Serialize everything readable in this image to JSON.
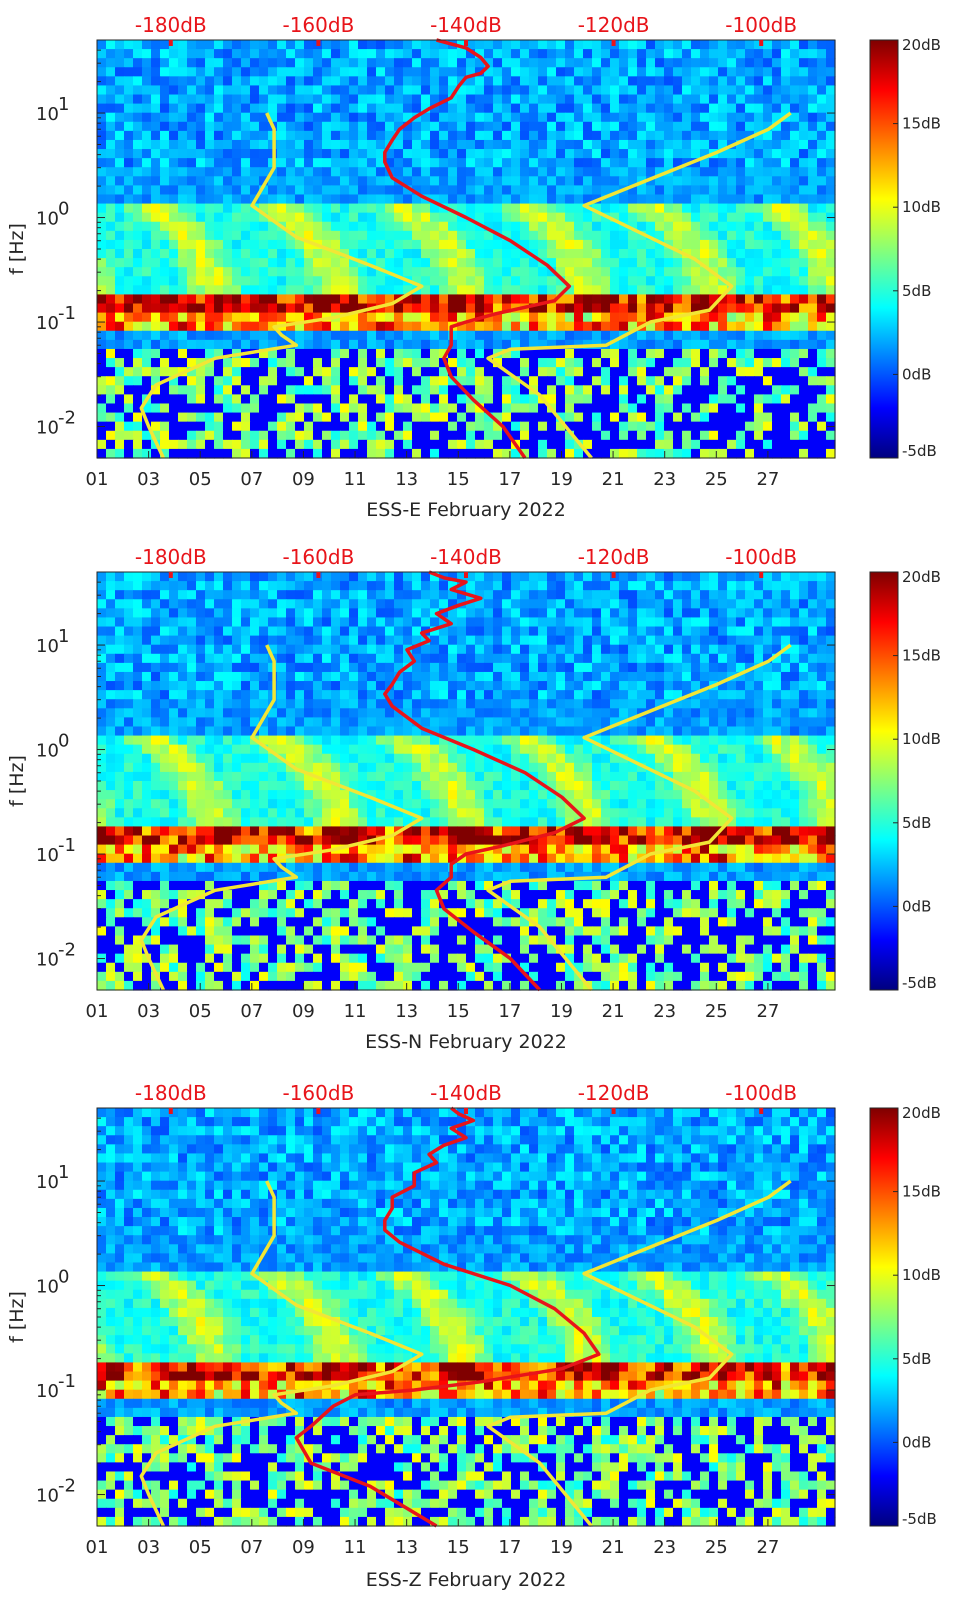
{
  "chart_data": [
    {
      "type": "heatmap",
      "title": "",
      "xlabel": "ESS-E February 2022",
      "ylabel": "f [Hz]",
      "x_tick_labels": [
        "01",
        "03",
        "05",
        "07",
        "09",
        "11",
        "13",
        "15",
        "17",
        "19",
        "21",
        "23",
        "25",
        "27"
      ],
      "x_range_days": [
        1,
        29.6
      ],
      "y_scale": "log",
      "y_range_hz": [
        0.005,
        50
      ],
      "y_tick_labels": [
        {
          "value": 10,
          "base": "10",
          "exp": "1"
        },
        {
          "value": 1,
          "base": "10",
          "exp": "0"
        },
        {
          "value": 0.1,
          "base": "10",
          "exp": "-1"
        },
        {
          "value": 0.01,
          "base": "10",
          "exp": "-2"
        }
      ],
      "top_axis_labels": [
        "-180dB",
        "-160dB",
        "-140dB",
        "-120dB",
        "-100dB"
      ],
      "top_axis_range_db": [
        -190,
        -90
      ],
      "colorbar": {
        "range_db": [
          -5,
          20
        ],
        "tick_labels": [
          "20dB",
          "15dB",
          "10dB",
          "5dB",
          "0dB",
          "-5dB"
        ],
        "colormap": "jet"
      },
      "series": [
        {
          "color": "#e8141a",
          "unit": "dB",
          "points": [
            [
              -144,
              50
            ],
            [
              -140,
              42
            ],
            [
              -138,
              34
            ],
            [
              -137,
              28
            ],
            [
              -138,
              24
            ],
            [
              -140,
              22
            ],
            [
              -141,
              18
            ],
            [
              -142,
              14
            ],
            [
              -145,
              11
            ],
            [
              -147,
              9
            ],
            [
              -149,
              7
            ],
            [
              -150,
              5.5
            ],
            [
              -151,
              4.2
            ],
            [
              -151,
              3.4
            ],
            [
              -150,
              2.4
            ],
            [
              -146,
              1.6
            ],
            [
              -140,
              1.0
            ],
            [
              -134,
              0.6
            ],
            [
              -129,
              0.35
            ],
            [
              -126,
              0.22
            ],
            [
              -128,
              0.16
            ],
            [
              -136,
              0.12
            ],
            [
              -140,
              0.1
            ],
            [
              -142,
              0.09
            ],
            [
              -142,
              0.06
            ],
            [
              -143,
              0.045
            ],
            [
              -142,
              0.03
            ],
            [
              -139,
              0.018
            ],
            [
              -135,
              0.01
            ],
            [
              -132,
              0.005
            ]
          ]
        },
        {
          "color": "#f2e635",
          "unit": "dB",
          "points": [
            [
              -181,
              0.005
            ],
            [
              -183,
              0.01
            ],
            [
              -184,
              0.015
            ],
            [
              -182,
              0.025
            ],
            [
              -174,
              0.045
            ],
            [
              -163,
              0.06
            ],
            [
              -165,
              0.075
            ],
            [
              -166,
              0.09
            ],
            [
              -158,
              0.11
            ],
            [
              -150,
              0.15
            ],
            [
              -146,
              0.22
            ],
            [
              -153,
              0.35
            ],
            [
              -163,
              0.65
            ],
            [
              -169,
              1.3
            ],
            [
              -166,
              3.0
            ],
            [
              -166,
              7.0
            ],
            [
              -167,
              10
            ]
          ]
        },
        {
          "color": "#f2e635",
          "unit": "dB",
          "points": [
            [
              -123,
              0.005
            ],
            [
              -130,
              0.02
            ],
            [
              -137,
              0.045
            ],
            [
              -134,
              0.055
            ],
            [
              -121,
              0.06
            ],
            [
              -115,
              0.1
            ],
            [
              -107,
              0.13
            ],
            [
              -104,
              0.22
            ],
            [
              -109,
              0.4
            ],
            [
              -124,
              1.3
            ],
            [
              -114,
              2.5
            ],
            [
              -106,
              4.2
            ],
            [
              -99,
              7.0
            ],
            [
              -96,
              10
            ]
          ]
        }
      ]
    },
    {
      "type": "heatmap",
      "title": "",
      "xlabel": "ESS-N February 2022",
      "ylabel": "f [Hz]",
      "x_tick_labels": [
        "01",
        "03",
        "05",
        "07",
        "09",
        "11",
        "13",
        "15",
        "17",
        "19",
        "21",
        "23",
        "25",
        "27"
      ],
      "x_range_days": [
        1,
        29.6
      ],
      "y_scale": "log",
      "y_range_hz": [
        0.005,
        50
      ],
      "y_tick_labels": [
        {
          "value": 10,
          "base": "10",
          "exp": "1"
        },
        {
          "value": 1,
          "base": "10",
          "exp": "0"
        },
        {
          "value": 0.1,
          "base": "10",
          "exp": "-1"
        },
        {
          "value": 0.01,
          "base": "10",
          "exp": "-2"
        }
      ],
      "top_axis_labels": [
        "-180dB",
        "-160dB",
        "-140dB",
        "-120dB",
        "-100dB"
      ],
      "top_axis_range_db": [
        -190,
        -90
      ],
      "colorbar": {
        "range_db": [
          -5,
          20
        ],
        "tick_labels": [
          "20dB",
          "15dB",
          "10dB",
          "5dB",
          "0dB",
          "-5dB"
        ],
        "colormap": "jet"
      },
      "series": [
        {
          "color": "#e8141a",
          "unit": "dB",
          "points": [
            [
              -145,
              50
            ],
            [
              -143,
              44
            ],
            [
              -140,
              40
            ],
            [
              -142,
              34
            ],
            [
              -138,
              28
            ],
            [
              -141,
              24
            ],
            [
              -144,
              20
            ],
            [
              -142,
              16
            ],
            [
              -146,
              13
            ],
            [
              -145,
              11
            ],
            [
              -148,
              9
            ],
            [
              -147,
              7
            ],
            [
              -149,
              5.5
            ],
            [
              -150,
              4.2
            ],
            [
              -151,
              3.4
            ],
            [
              -150,
              2.6
            ],
            [
              -146,
              1.6
            ],
            [
              -139,
              1.0
            ],
            [
              -132,
              0.6
            ],
            [
              -127,
              0.35
            ],
            [
              -124,
              0.22
            ],
            [
              -128,
              0.16
            ],
            [
              -135,
              0.12
            ],
            [
              -140,
              0.1
            ],
            [
              -142,
              0.08
            ],
            [
              -142,
              0.06
            ],
            [
              -144,
              0.045
            ],
            [
              -143,
              0.03
            ],
            [
              -139,
              0.018
            ],
            [
              -134,
              0.01
            ],
            [
              -130,
              0.005
            ]
          ]
        },
        {
          "color": "#f2e635",
          "unit": "dB",
          "points": [
            [
              -181,
              0.005
            ],
            [
              -183,
              0.01
            ],
            [
              -184,
              0.015
            ],
            [
              -182,
              0.025
            ],
            [
              -174,
              0.045
            ],
            [
              -163,
              0.06
            ],
            [
              -165,
              0.075
            ],
            [
              -166,
              0.09
            ],
            [
              -158,
              0.11
            ],
            [
              -150,
              0.15
            ],
            [
              -146,
              0.22
            ],
            [
              -153,
              0.35
            ],
            [
              -163,
              0.65
            ],
            [
              -169,
              1.3
            ],
            [
              -166,
              3.0
            ],
            [
              -166,
              7.0
            ],
            [
              -167,
              10
            ]
          ]
        },
        {
          "color": "#f2e635",
          "unit": "dB",
          "points": [
            [
              -123,
              0.005
            ],
            [
              -130,
              0.02
            ],
            [
              -137,
              0.045
            ],
            [
              -134,
              0.055
            ],
            [
              -121,
              0.06
            ],
            [
              -115,
              0.1
            ],
            [
              -107,
              0.13
            ],
            [
              -104,
              0.22
            ],
            [
              -109,
              0.4
            ],
            [
              -124,
              1.3
            ],
            [
              -114,
              2.5
            ],
            [
              -106,
              4.2
            ],
            [
              -99,
              7.0
            ],
            [
              -96,
              10
            ]
          ]
        }
      ]
    },
    {
      "type": "heatmap",
      "title": "",
      "xlabel": "ESS-Z February 2022",
      "ylabel": "f [Hz]",
      "x_tick_labels": [
        "01",
        "03",
        "05",
        "07",
        "09",
        "11",
        "13",
        "15",
        "17",
        "19",
        "21",
        "23",
        "25",
        "27"
      ],
      "x_range_days": [
        1,
        29.6
      ],
      "y_scale": "log",
      "y_range_hz": [
        0.005,
        50
      ],
      "y_tick_labels": [
        {
          "value": 10,
          "base": "10",
          "exp": "1"
        },
        {
          "value": 1,
          "base": "10",
          "exp": "0"
        },
        {
          "value": 0.1,
          "base": "10",
          "exp": "-1"
        },
        {
          "value": 0.01,
          "base": "10",
          "exp": "-2"
        }
      ],
      "top_axis_labels": [
        "-180dB",
        "-160dB",
        "-140dB",
        "-120dB",
        "-100dB"
      ],
      "top_axis_range_db": [
        -190,
        -90
      ],
      "colorbar": {
        "range_db": [
          -5,
          20
        ],
        "tick_labels": [
          "20dB",
          "15dB",
          "10dB",
          "5dB",
          "0dB",
          "-5dB"
        ],
        "colormap": "jet"
      },
      "series": [
        {
          "color": "#e8141a",
          "unit": "dB",
          "points": [
            [
              -142,
              50
            ],
            [
              -141,
              44
            ],
            [
              -139,
              38
            ],
            [
              -142,
              32
            ],
            [
              -140,
              26
            ],
            [
              -143,
              22
            ],
            [
              -145,
              18
            ],
            [
              -144,
              15
            ],
            [
              -147,
              12
            ],
            [
              -147,
              9
            ],
            [
              -150,
              7
            ],
            [
              -150,
              5.5
            ],
            [
              -151,
              4.2
            ],
            [
              -151,
              3.4
            ],
            [
              -149,
              2.6
            ],
            [
              -143,
              1.6
            ],
            [
              -134,
              1.0
            ],
            [
              -128,
              0.6
            ],
            [
              -124,
              0.35
            ],
            [
              -122,
              0.22
            ],
            [
              -127,
              0.16
            ],
            [
              -138,
              0.12
            ],
            [
              -147,
              0.1
            ],
            [
              -155,
              0.09
            ],
            [
              -158,
              0.07
            ],
            [
              -161,
              0.045
            ],
            [
              -163,
              0.035
            ],
            [
              -161,
              0.02
            ],
            [
              -153,
              0.012
            ],
            [
              -144,
              0.005
            ]
          ]
        },
        {
          "color": "#f2e635",
          "unit": "dB",
          "points": [
            [
              -181,
              0.005
            ],
            [
              -183,
              0.01
            ],
            [
              -184,
              0.015
            ],
            [
              -182,
              0.025
            ],
            [
              -174,
              0.045
            ],
            [
              -163,
              0.06
            ],
            [
              -165,
              0.075
            ],
            [
              -166,
              0.09
            ],
            [
              -158,
              0.11
            ],
            [
              -150,
              0.15
            ],
            [
              -146,
              0.22
            ],
            [
              -153,
              0.35
            ],
            [
              -163,
              0.65
            ],
            [
              -169,
              1.3
            ],
            [
              -166,
              3.0
            ],
            [
              -166,
              7.0
            ],
            [
              -167,
              10
            ]
          ]
        },
        {
          "color": "#f2e635",
          "unit": "dB",
          "points": [
            [
              -123,
              0.005
            ],
            [
              -130,
              0.02
            ],
            [
              -137,
              0.045
            ],
            [
              -134,
              0.055
            ],
            [
              -121,
              0.06
            ],
            [
              -115,
              0.1
            ],
            [
              -107,
              0.13
            ],
            [
              -104,
              0.22
            ],
            [
              -109,
              0.4
            ],
            [
              -124,
              1.3
            ],
            [
              -114,
              2.5
            ],
            [
              -106,
              4.2
            ],
            [
              -99,
              7.0
            ],
            [
              -96,
              10
            ]
          ]
        }
      ]
    }
  ]
}
